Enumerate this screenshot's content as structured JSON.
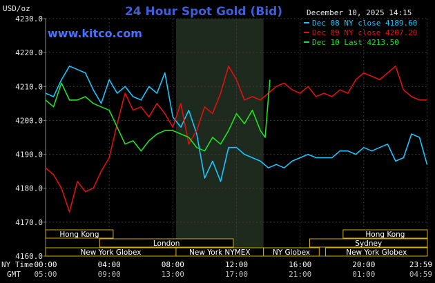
{
  "chart_data": {
    "type": "line",
    "title": "24 Hour Spot Gold (Bid)",
    "website": "www.kitco.com",
    "date_label": "December 10, 2025 14:15",
    "ylabel": "USD/oz",
    "ylim": [
      4160,
      4230
    ],
    "yticks": [
      "4230.0",
      "4220.0",
      "4210.0",
      "4200.0",
      "4190.0",
      "4180.0",
      "4170.0",
      "4160.0"
    ],
    "ytick_values": [
      4230,
      4220,
      4210,
      4200,
      4190,
      4180,
      4170,
      4160
    ],
    "xlim": [
      0,
      24
    ],
    "x_axis_primary_label": "NY Time",
    "x_axis_secondary_label": "GMT",
    "xticks_ny": [
      "00:00",
      "04:00",
      "08:00",
      "12:00",
      "16:00",
      "20:00",
      "23:59"
    ],
    "xticks_gmt": [
      "05:00",
      "09:00",
      "13:00",
      "17:00",
      "21:00",
      "01:00",
      "04:59"
    ],
    "xtick_hours": [
      0,
      4,
      8,
      12,
      16,
      20,
      23.98
    ],
    "grid": true,
    "shaded_region": {
      "from": 8.2,
      "to": 13.7,
      "color": "#1d2a1d"
    },
    "legend_position": "top-right",
    "sessions": [
      {
        "name": "Hong Kong",
        "from": 0,
        "to": 4.25,
        "row": 0
      },
      {
        "name": "Hong Kong",
        "from": 18.7,
        "to": 24,
        "row": 0
      },
      {
        "name": "London",
        "from": 3.4,
        "to": 11.8,
        "row": 1
      },
      {
        "name": "Sydney",
        "from": 16.6,
        "to": 24,
        "row": 1
      },
      {
        "name": "New York Globex",
        "from": 0,
        "to": 8.2,
        "row": 2
      },
      {
        "name": "New York NYMEX",
        "from": 8.2,
        "to": 13.7,
        "row": 2
      },
      {
        "name": "NY Globex",
        "from": 13.7,
        "to": 17.2,
        "row": 2
      },
      {
        "name": "New York Globex",
        "from": 17.6,
        "to": 24,
        "row": 2
      }
    ],
    "series": [
      {
        "name": "Dec 08 NY close 4189.60",
        "color": "#19c6ff",
        "x": [
          0,
          0.5,
          1,
          1.5,
          2,
          2.5,
          3,
          3.5,
          4,
          4.5,
          5,
          5.5,
          6,
          6.5,
          7,
          7.5,
          8,
          8.5,
          9,
          9.5,
          10,
          10.5,
          11,
          11.5,
          12,
          12.5,
          13,
          13.5,
          14,
          14.5,
          15,
          15.5,
          16,
          16.5,
          17,
          17.5,
          18,
          18.5,
          19,
          19.5,
          20,
          20.5,
          21,
          21.5,
          22,
          22.5,
          23,
          23.5,
          23.98
        ],
        "values": [
          4208,
          4207,
          4212,
          4216,
          4215,
          4214,
          4209,
          4205,
          4212,
          4208,
          4210,
          4207,
          4206,
          4210,
          4208,
          4214,
          4201,
          4198,
          4203,
          4196,
          4183,
          4188,
          4182,
          4192,
          4192,
          4190,
          4189,
          4188,
          4186,
          4187,
          4186,
          4188,
          4189,
          4190,
          4189,
          4189,
          4189,
          4191,
          4191,
          4190,
          4192,
          4191,
          4192,
          4193,
          4188,
          4189,
          4196,
          4195,
          4187
        ]
      },
      {
        "name": "Dec 09 NY close 4207.20",
        "color": "#e01010",
        "x": [
          0,
          0.5,
          1,
          1.5,
          2,
          2.5,
          3,
          3.5,
          4,
          4.5,
          5,
          5.5,
          6,
          6.5,
          7,
          7.5,
          8,
          8.5,
          9,
          9.5,
          10,
          10.5,
          11,
          11.5,
          12,
          12.5,
          13,
          13.5,
          14,
          14.5,
          15,
          15.5,
          16,
          16.5,
          17,
          17.5,
          18,
          18.5,
          19,
          19.5,
          20,
          20.5,
          21,
          21.5,
          22,
          22.5,
          23,
          23.5,
          23.98
        ],
        "values": [
          4186,
          4184,
          4180,
          4173,
          4182,
          4179,
          4180,
          4185,
          4189,
          4199,
          4208,
          4203,
          4204,
          4201,
          4205,
          4202,
          4198,
          4205,
          4193,
          4197,
          4204,
          4202,
          4208,
          4216,
          4212,
          4206,
          4207,
          4206,
          4208,
          4210,
          4211,
          4209,
          4208,
          4210,
          4207,
          4208,
          4207,
          4209,
          4208,
          4212,
          4214,
          4213,
          4212,
          4214,
          4216,
          4209,
          4207,
          4206,
          4206
        ]
      },
      {
        "name": "Dec 10 Last 4213.50",
        "color": "#22e022",
        "x": [
          0,
          0.5,
          1,
          1.5,
          2,
          2.5,
          3,
          3.5,
          4,
          4.5,
          5,
          5.5,
          6,
          6.5,
          7,
          7.5,
          8,
          8.5,
          9,
          9.5,
          10,
          10.5,
          11,
          11.5,
          12,
          12.5,
          13,
          13.5,
          13.8,
          14.1
        ],
        "values": [
          4206,
          4204,
          4211,
          4206,
          4206,
          4207,
          4205,
          4204,
          4203,
          4198,
          4193,
          4194,
          4191,
          4194,
          4196,
          4197,
          4197,
          4196,
          4195,
          4192,
          4191,
          4195,
          4193,
          4197,
          4202,
          4199,
          4203,
          4197,
          4195,
          4212
        ]
      }
    ]
  }
}
